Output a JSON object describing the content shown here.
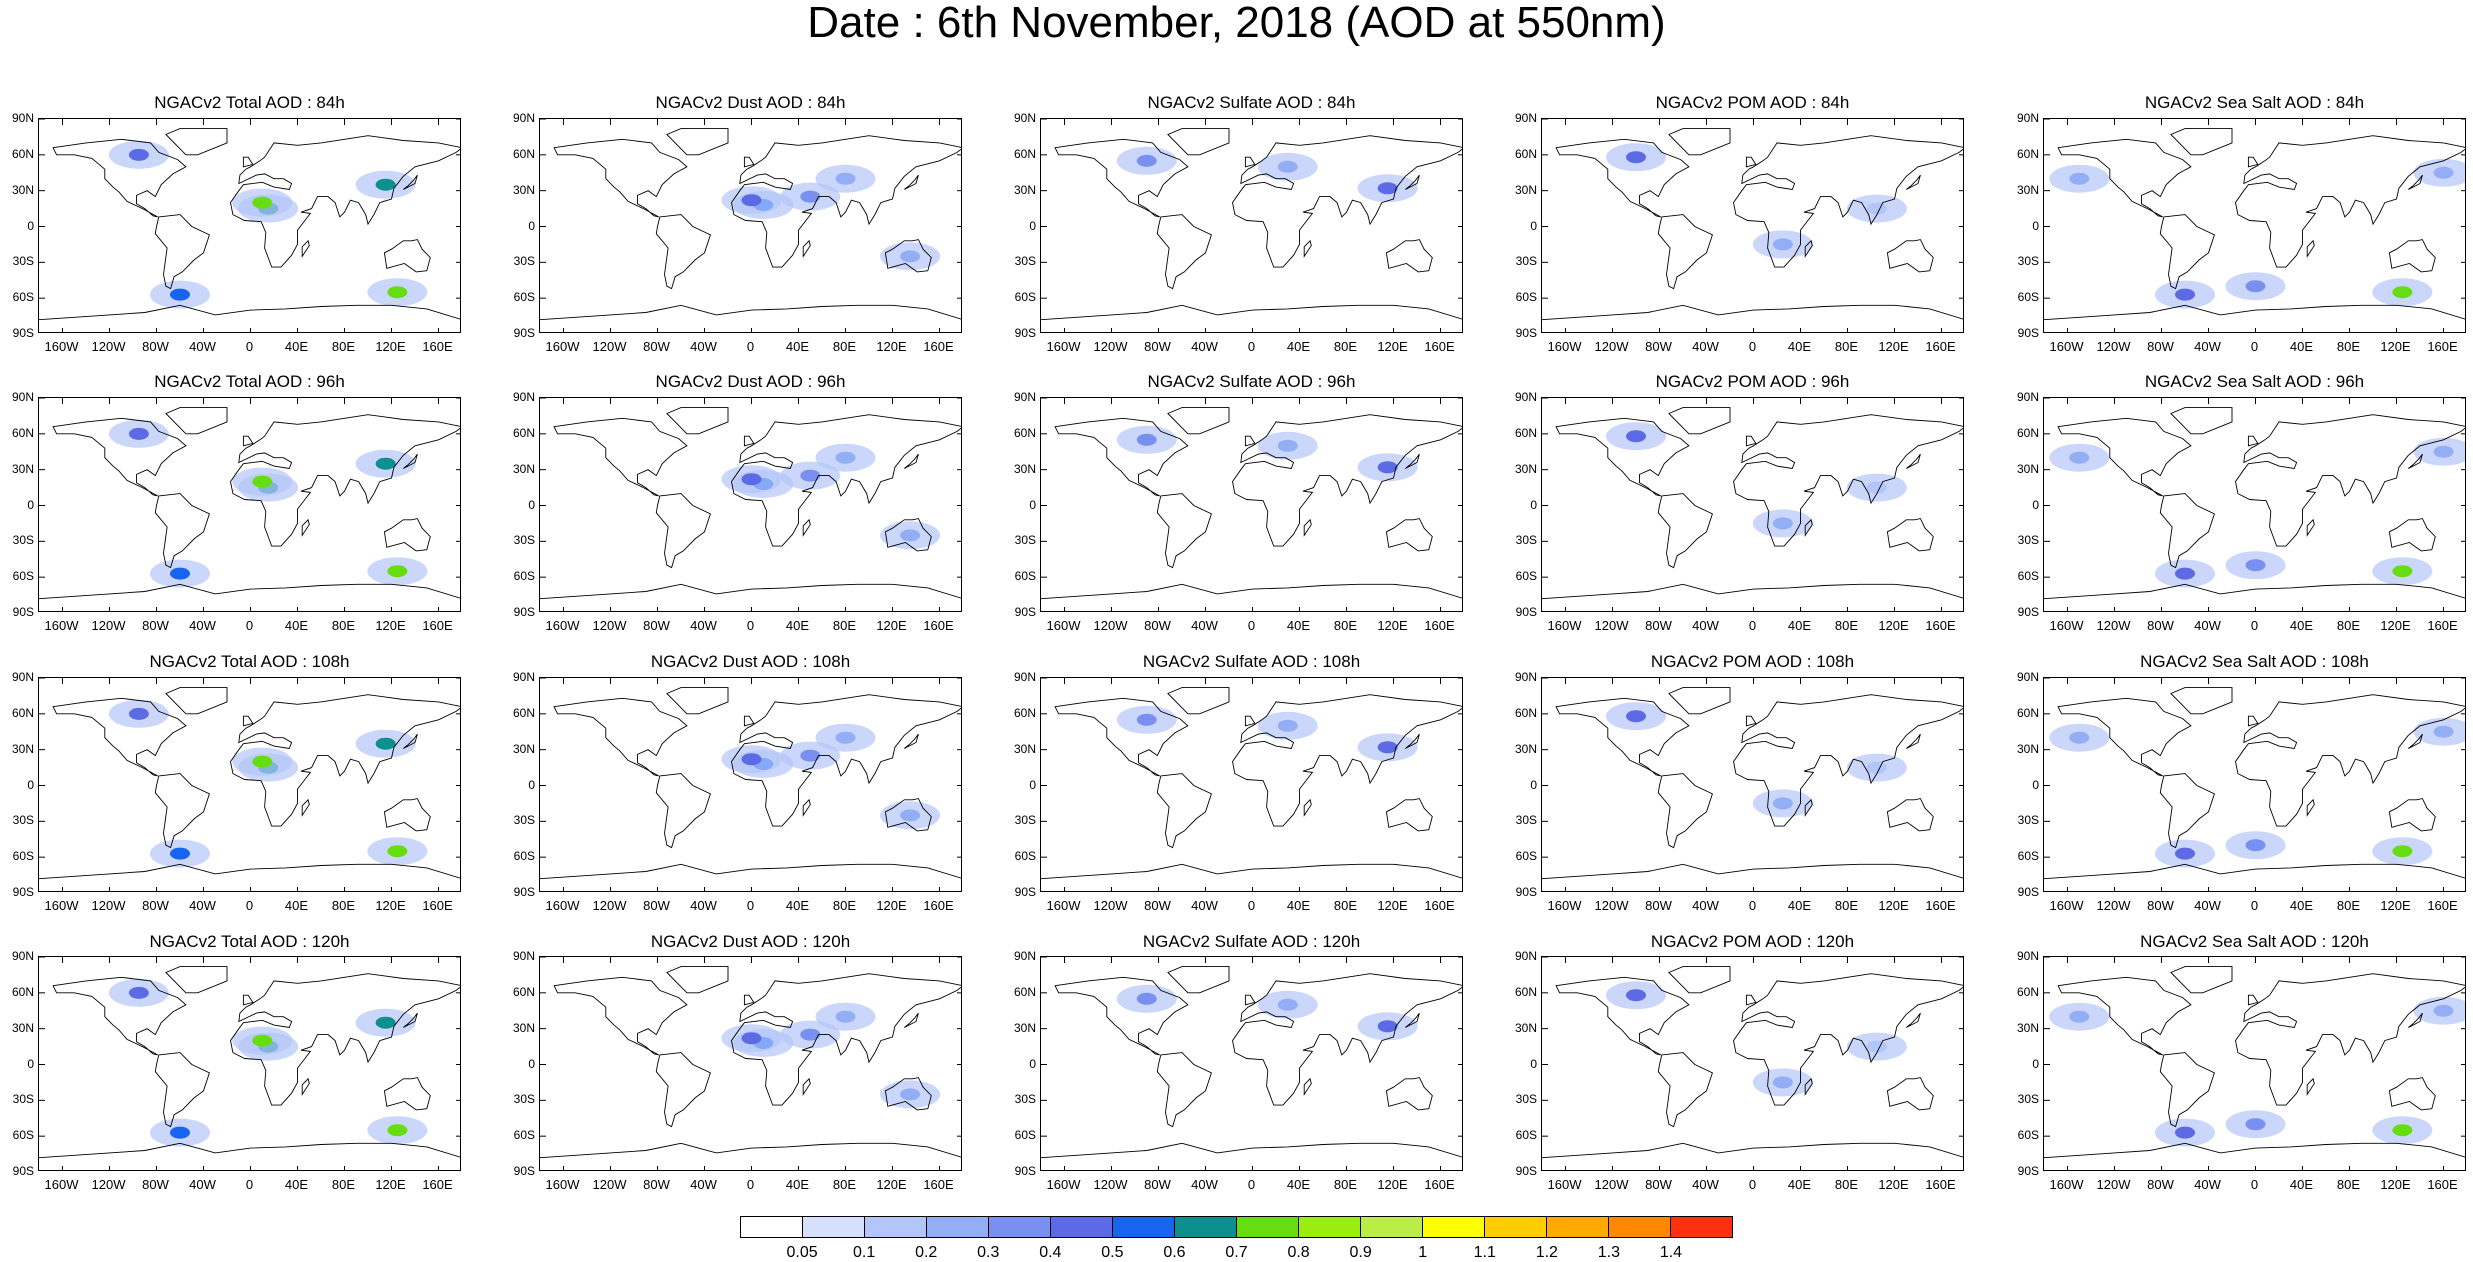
{
  "title": "Date : 6th November, 2018 (AOD at 550nm)",
  "panel_titles": [
    [
      "NGACv2 Total AOD : 84h",
      "NGACv2 Dust AOD : 84h",
      "NGACv2 Sulfate AOD : 84h",
      "NGACv2 POM AOD : 84h",
      "NGACv2 Sea Salt AOD : 84h"
    ],
    [
      "NGACv2 Total AOD : 96h",
      "NGACv2 Dust AOD : 96h",
      "NGACv2 Sulfate AOD : 96h",
      "NGACv2 POM AOD : 96h",
      "NGACv2 Sea Salt AOD : 96h"
    ],
    [
      "NGACv2 Total AOD : 108h",
      "NGACv2 Dust AOD : 108h",
      "NGACv2 Sulfate AOD : 108h",
      "NGACv2 POM AOD : 108h",
      "NGACv2 Sea Salt AOD : 108h"
    ],
    [
      "NGACv2 Total AOD : 120h",
      "NGACv2 Dust AOD : 120h",
      "NGACv2 Sulfate AOD : 120h",
      "NGACv2 POM AOD : 120h",
      "NGACv2 Sea Salt  AOD : 120h"
    ]
  ],
  "lat_labels": [
    "90N",
    "60N",
    "30N",
    "0",
    "30S",
    "60S",
    "90S"
  ],
  "lon_labels": [
    "160W",
    "120W",
    "80W",
    "40W",
    "0",
    "40E",
    "80E",
    "120E",
    "160E"
  ],
  "colorbar": {
    "labels": [
      "0.05",
      "0.1",
      "0.2",
      "0.3",
      "0.4",
      "0.5",
      "0.6",
      "0.7",
      "0.8",
      "0.9",
      "1",
      "1.1",
      "1.2",
      "1.3",
      "1.4"
    ],
    "colors": [
      "#ffffff",
      "#d6e0fc",
      "#b3c6f9",
      "#94aef6",
      "#7a90f0",
      "#5c6ae6",
      "#1664f0",
      "#0b8f8f",
      "#66dd10",
      "#99ee10",
      "#bbee44",
      "#ffff00",
      "#ffcc00",
      "#ffaa00",
      "#ff8800",
      "#ff3010"
    ]
  },
  "chart_data": {
    "type": "heatmap",
    "title": "Date : 6th November, 2018 (AOD at 550nm)",
    "rows_forecast_hours": [
      "84h",
      "96h",
      "108h",
      "120h"
    ],
    "columns_species": [
      "Total",
      "Dust",
      "Sulfate",
      "POM",
      "Sea Salt"
    ],
    "lat_range": [
      "90S",
      "90N"
    ],
    "lon_range": [
      "180W",
      "180E"
    ],
    "levels": [
      0.05,
      0.1,
      0.2,
      0.3,
      0.4,
      0.5,
      0.6,
      0.7,
      0.8,
      0.9,
      1,
      1.1,
      1.2,
      1.3,
      1.4
    ],
    "aod_hotspots_lonlat_value": {
      "Total": [
        [
          15,
          15,
          0.6
        ],
        [
          10,
          20,
          0.7
        ],
        [
          115,
          35,
          0.6
        ],
        [
          125,
          -55,
          0.7
        ],
        [
          -95,
          60,
          0.4
        ],
        [
          -60,
          -57,
          0.5
        ]
      ],
      "Dust": [
        [
          10,
          18,
          0.5
        ],
        [
          0,
          22,
          0.4
        ],
        [
          50,
          25,
          0.3
        ],
        [
          80,
          40,
          0.2
        ],
        [
          135,
          -25,
          0.2
        ]
      ],
      "Sulfate": [
        [
          115,
          32,
          0.4
        ],
        [
          -90,
          55,
          0.3
        ],
        [
          30,
          50,
          0.2
        ]
      ],
      "POM": [
        [
          -100,
          58,
          0.4
        ],
        [
          25,
          -15,
          0.2
        ],
        [
          105,
          15,
          0.1
        ]
      ],
      "Sea Salt": [
        [
          125,
          -55,
          0.7
        ],
        [
          -60,
          -57,
          0.4
        ],
        [
          0,
          -50,
          0.3
        ],
        [
          -150,
          40,
          0.2
        ],
        [
          160,
          45,
          0.2
        ]
      ]
    }
  }
}
